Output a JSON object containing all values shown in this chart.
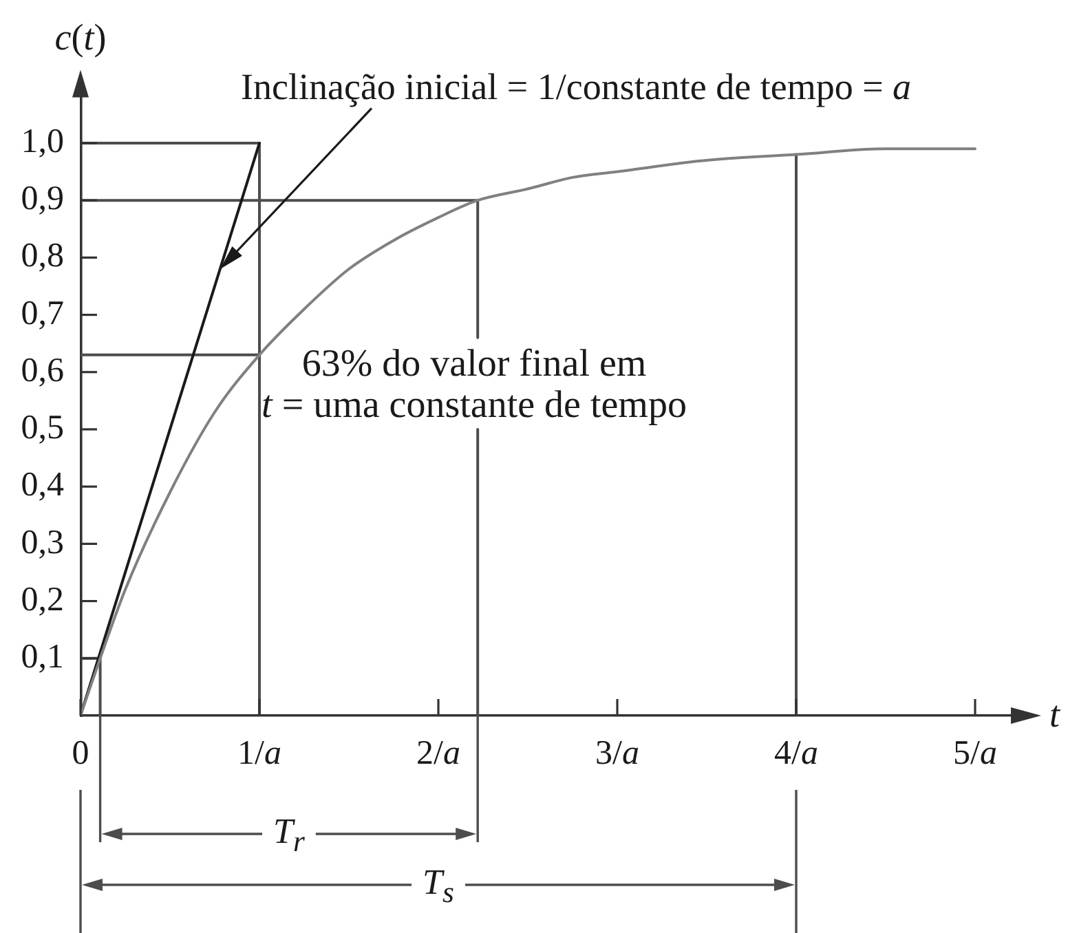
{
  "chart_data": {
    "type": "line",
    "xlabel": "t",
    "ylabel": "c(t)",
    "annotations": [
      "Inclinação inicial = 1/constante de tempo = a",
      {
        "text": "63% do valor final em\nt = uma constante de tempo",
        "x": 1,
        "y": 0.63
      },
      "T$_{r}$",
      "T$_{s}$"
    ],
    "series": [
      {
        "color": "#808080",
        "x": [
          0,
          0.11,
          0.25,
          0.5,
          0.75,
          1,
          1.25,
          1.5,
          1.75,
          2,
          2.22,
          2.5,
          2.75,
          3,
          3.5,
          4,
          4.5,
          5
        ],
        "values": [
          0,
          0.1,
          0.22,
          0.39,
          0.53,
          0.63,
          0.71,
          0.78,
          0.83,
          0.87,
          0.9,
          0.92,
          0.94,
          0.95,
          0.97,
          0.98,
          0.99,
          0.99
        ]
      },
      {
        "color": "#1a1a1a",
        "x": [
          0,
          1
        ],
        "values": [
          0,
          1
        ]
      },
      {
        "color": "#4d4d4d",
        "x": [
          0,
          1,
          1
        ],
        "values": [
          1,
          1,
          0
        ]
      },
      {
        "color": "#4d4d4d",
        "x": [
          0,
          1
        ],
        "values": [
          0.63,
          0.63
        ]
      },
      {
        "color": "#4d4d4d",
        "x": [
          0,
          2.22,
          2.22
        ],
        "values": [
          0.9,
          0.9,
          0.66
        ]
      },
      {
        "color": "#4d4d4d",
        "x": [
          2.22,
          2.22
        ],
        "values": [
          0.5,
          0
        ]
      },
      {
        "color": "#4d4d4d",
        "x": [
          0,
          0.11,
          0.11
        ],
        "values": [
          0.1,
          0.1,
          0
        ]
      },
      {
        "color": "#4d4d4d",
        "x": [
          4,
          4
        ],
        "values": [
          0.98,
          0
        ]
      }
    ],
    "xlim": [
      0,
      5.2
    ],
    "xticks": [
      0,
      {
        "value": 1,
        "label": "1/a"
      },
      {
        "value": 2,
        "label": "2/a"
      },
      {
        "value": 3,
        "label": "3/a"
      },
      {
        "value": 4,
        "label": "4/a"
      },
      {
        "value": 5,
        "label": "5/a"
      }
    ],
    "ylim": [
      0,
      1.08
    ],
    "yticks": [
      {
        "value": 0.1,
        "label": "0,1"
      },
      {
        "value": 0.2,
        "label": "0,2"
      },
      {
        "value": 0.3,
        "label": "0,3"
      },
      {
        "value": 0.4,
        "label": "0,4"
      },
      {
        "value": 0.5,
        "label": "0,5"
      },
      {
        "value": 0.6,
        "label": "0,6"
      },
      {
        "value": 0.7,
        "label": "0,7"
      },
      {
        "value": 0.8,
        "label": "0,8"
      },
      {
        "value": 0.9,
        "label": "0,9"
      },
      {
        "value": 1,
        "label": "1,0"
      }
    ]
  }
}
